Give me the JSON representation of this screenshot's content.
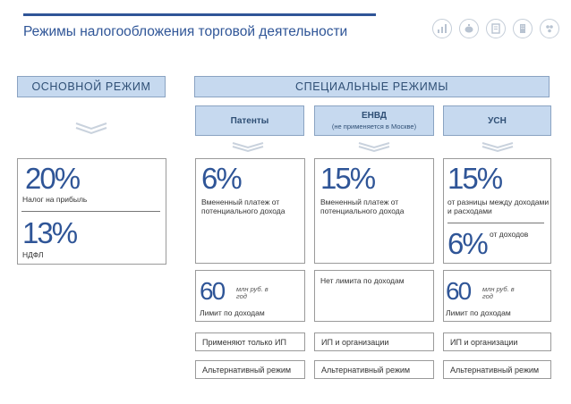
{
  "header": {
    "title": "Режимы налогообложения торговой деятельности"
  },
  "icons": [
    "bar-chart-icon",
    "piggy-bank-icon",
    "document-icon",
    "building-icon",
    "people-icon"
  ],
  "regimes": {
    "basic": {
      "label": "ОСНОВНОЙ РЕЖИМ",
      "rate1": "20%",
      "rate1_text": "Налог на прибыль",
      "rate2": "13%",
      "rate2_text": "НДФЛ"
    },
    "special": {
      "label": "СПЕЦИАЛЬНЫЕ РЕЖИМЫ",
      "columns": [
        {
          "name": "Патенты",
          "note": "",
          "rate": "6%",
          "rate_text": "Вмененный платеж от потенциального дохода",
          "limit_value": "60",
          "limit_unit": "млн руб. в год",
          "limit_text": "Лимит по доходам",
          "who": "Применяют только ИП",
          "mode": "Альтернативный режим"
        },
        {
          "name": "ЕНВД",
          "note": "(не применяется в Москве)",
          "rate": "15%",
          "rate_text": "Вмененный платеж от потенциального дохода",
          "limit_text": "Нет лимита по доходам",
          "who": "ИП и организации",
          "mode": "Альтернативный режим"
        },
        {
          "name": "УСН",
          "note": "",
          "rate": "15%",
          "rate_text": "от разницы между доходами и расходами",
          "rate2": "6%",
          "rate2_text": "от доходов",
          "limit_value": "60",
          "limit_unit": "млн руб. в год",
          "limit_text": "Лимит по доходам",
          "who": "ИП и организации",
          "mode": "Альтернативный режим"
        }
      ]
    }
  },
  "colors": {
    "accent": "#2f5597",
    "header_fill": "#c6d9ef",
    "header_border": "#8aa3c2"
  }
}
